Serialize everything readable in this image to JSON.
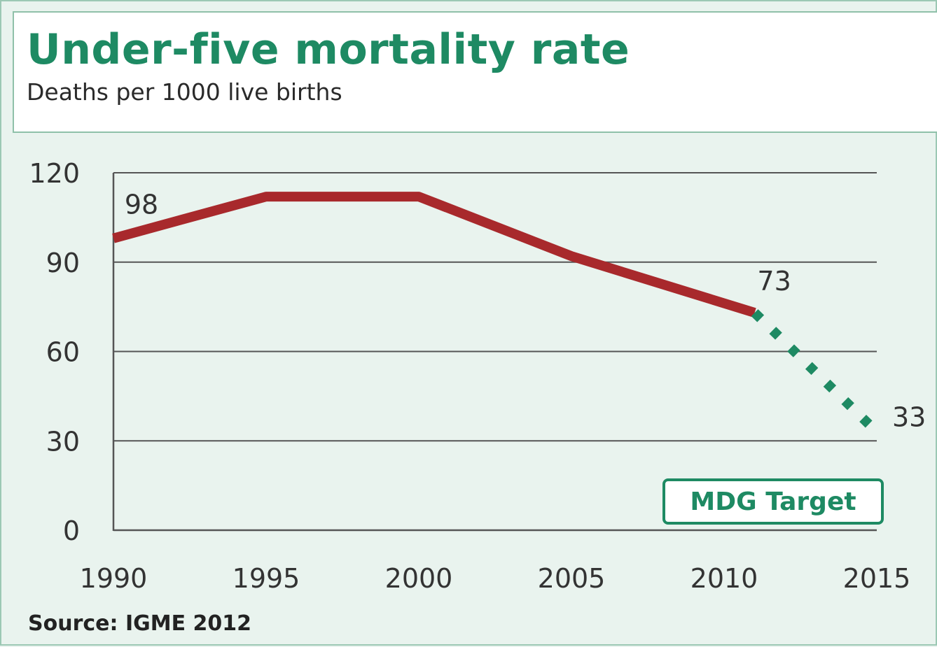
{
  "colors": {
    "title": "#1e8a63",
    "actual_line": "#a8292c",
    "target_line": "#1e8a63",
    "grid": "#555555",
    "background": "#e9f3ee"
  },
  "chart_data": {
    "type": "line",
    "title": "Under-five mortality rate",
    "subtitle": "Deaths per 1000 live births",
    "xlabel": "",
    "ylabel": "",
    "xlim": [
      1990,
      2015
    ],
    "ylim": [
      0,
      120
    ],
    "x_ticks": [
      "1990",
      "1995",
      "2000",
      "2005",
      "2010",
      "2015"
    ],
    "y_ticks": [
      "0",
      "30",
      "60",
      "90",
      "120"
    ],
    "grid": true,
    "series": [
      {
        "style": "solid",
        "color": "#a8292c",
        "x": [
          1990,
          1995,
          2000,
          2005,
          2011
        ],
        "y": [
          98,
          112,
          112,
          92,
          73
        ]
      },
      {
        "style": "dotted",
        "color": "#1e8a63",
        "x": [
          2011,
          2015
        ],
        "y": [
          73,
          33
        ]
      }
    ],
    "annotations": [
      {
        "text": "98",
        "x": 1990,
        "y": 98
      },
      {
        "text": "73",
        "x": 2011,
        "y": 73
      },
      {
        "text": "33",
        "x": 2015,
        "y": 33
      }
    ],
    "legend": {
      "label": "MDG Target",
      "placement": "bottom-right"
    },
    "source": "Source: IGME 2012"
  }
}
